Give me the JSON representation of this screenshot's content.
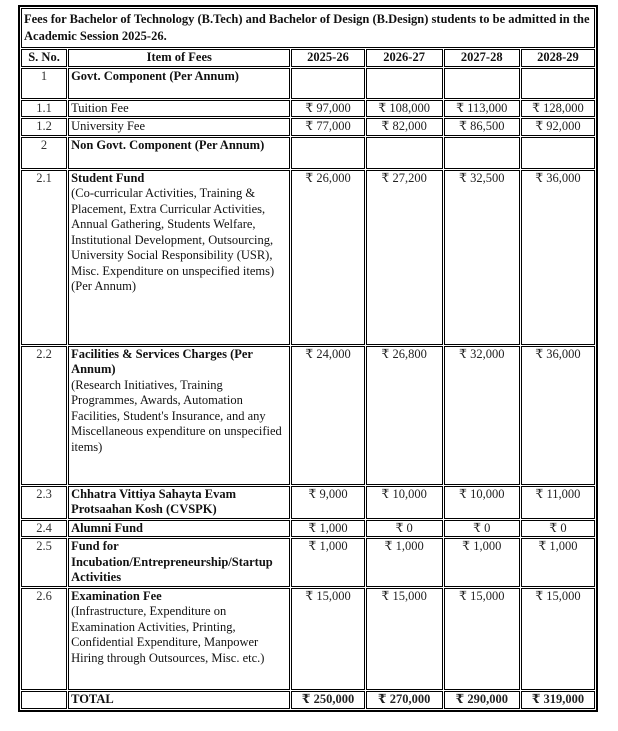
{
  "title": "Fees for Bachelor of Technology (B.Tech) and Bachelor of Design (B.Design) students to be admitted in the Academic Session 2025-26.",
  "headers": [
    "S. No.",
    "Item of Fees",
    "2025-26",
    "2026-27",
    "2027-28",
    "2028-29"
  ],
  "rows": [
    {
      "sno": "1",
      "item": "Govt. Component (Per Annum)",
      "desc": "",
      "values": [
        "",
        "",
        "",
        ""
      ]
    },
    {
      "sno": "1.1",
      "item": "Tuition Fee",
      "desc": "",
      "values": [
        "₹ 97,000",
        "₹ 108,000",
        "₹ 113,000",
        "₹ 128,000"
      ]
    },
    {
      "sno": "1.2",
      "item": "University Fee",
      "desc": "",
      "values": [
        "₹ 77,000",
        "₹ 82,000",
        "₹ 86,500",
        "₹ 92,000"
      ]
    },
    {
      "sno": "2",
      "item": "Non Govt. Component (Per Annum)",
      "desc": "",
      "values": [
        "",
        "",
        "",
        ""
      ]
    },
    {
      "sno": "2.1",
      "item": "Student Fund",
      "desc": "(Co-curricular Activities, Training & Placement, Extra Curricular Activities, Annual Gathering, Students Welfare, Institutional Development, Outsourcing, University Social Responsibility (USR), Misc. Expenditure on unspecified items) (Per Annum)",
      "values": [
        "₹ 26,000",
        "₹ 27,200",
        "₹ 32,500",
        "₹ 36,000"
      ]
    },
    {
      "sno": "2.2",
      "item": "Facilities & Services Charges (Per Annum)",
      "desc": "(Research Initiatives, Training Programmes, Awards, Automation Facilities, Student's Insurance, and any Miscellaneous expenditure on unspecified items)",
      "values": [
        "₹ 24,000",
        "₹ 26,800",
        "₹ 32,000",
        "₹ 36,000"
      ]
    },
    {
      "sno": "2.3",
      "item": "Chhatra Vittiya Sahayta Evam Protsaahan Kosh (CVSPK)",
      "desc": "",
      "values": [
        "₹ 9,000",
        "₹ 10,000",
        "₹ 10,000",
        "₹ 11,000"
      ]
    },
    {
      "sno": "2.4",
      "item": "Alumni Fund",
      "desc": "",
      "values": [
        "₹ 1,000",
        "₹ 0",
        "₹ 0",
        "₹ 0"
      ]
    },
    {
      "sno": "2.5",
      "item": "Fund for Incubation/Entrepreneurship/Startup Activities",
      "desc": "",
      "values": [
        "₹ 1,000",
        "₹ 1,000",
        "₹ 1,000",
        "₹ 1,000"
      ]
    },
    {
      "sno": "2.6",
      "item": "Examination Fee",
      "desc": "(Infrastructure, Expenditure on Examination Activities, Printing, Confidential Expenditure, Manpower Hiring through Outsources, Misc. etc.)",
      "values": [
        "₹ 15,000",
        "₹ 15,000",
        "₹ 15,000",
        "₹ 15,000"
      ]
    }
  ],
  "total": {
    "label": "TOTAL",
    "values": [
      "₹ 250,000",
      "₹ 270,000",
      "₹ 290,000",
      "₹ 319,000"
    ]
  }
}
